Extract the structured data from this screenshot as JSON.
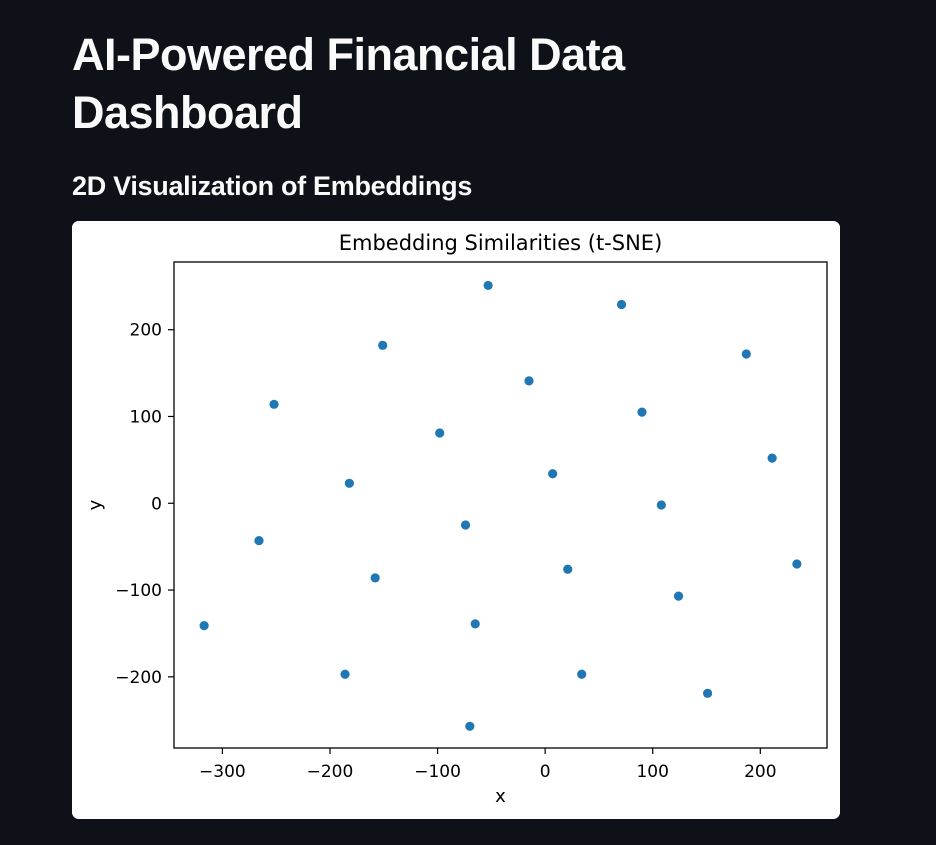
{
  "header": {
    "title": "AI-Powered Financial Data Dashboard"
  },
  "section": {
    "heading": "2D Visualization of Embeddings"
  },
  "colors": {
    "page_background": "#0e1117",
    "text": "#fafafa",
    "card_background": "#ffffff",
    "marker": "#1f77b4"
  },
  "chart_data": {
    "type": "scatter",
    "title": "Embedding Similarities (t-SNE)",
    "xlabel": "x",
    "ylabel": "y",
    "xlim": [
      -345,
      262
    ],
    "ylim": [
      -282,
      278
    ],
    "xticks": [
      -300,
      -200,
      -100,
      0,
      100,
      200
    ],
    "yticks": [
      -200,
      -100,
      0,
      100,
      200
    ],
    "xtick_labels": [
      "−300",
      "−200",
      "−100",
      "0",
      "100",
      "200"
    ],
    "ytick_labels": [
      "−200",
      "−100",
      "0",
      "100",
      "200"
    ],
    "grid": false,
    "series": [
      {
        "color": "#1f77b4",
        "points": [
          {
            "x": -53,
            "y": 251
          },
          {
            "x": 71,
            "y": 229
          },
          {
            "x": -151,
            "y": 182
          },
          {
            "x": 187,
            "y": 172
          },
          {
            "x": -15,
            "y": 141
          },
          {
            "x": -252,
            "y": 114
          },
          {
            "x": 90,
            "y": 105
          },
          {
            "x": -98,
            "y": 81
          },
          {
            "x": 211,
            "y": 52
          },
          {
            "x": 7,
            "y": 34
          },
          {
            "x": -182,
            "y": 23
          },
          {
            "x": 108,
            "y": -2
          },
          {
            "x": -74,
            "y": -25
          },
          {
            "x": -266,
            "y": -43
          },
          {
            "x": 234,
            "y": -70
          },
          {
            "x": 21,
            "y": -76
          },
          {
            "x": -158,
            "y": -86
          },
          {
            "x": 124,
            "y": -107
          },
          {
            "x": -65,
            "y": -139
          },
          {
            "x": -317,
            "y": -141
          },
          {
            "x": 34,
            "y": -197
          },
          {
            "x": -186,
            "y": -197
          },
          {
            "x": 151,
            "y": -219
          },
          {
            "x": -70,
            "y": -257
          }
        ]
      }
    ]
  }
}
